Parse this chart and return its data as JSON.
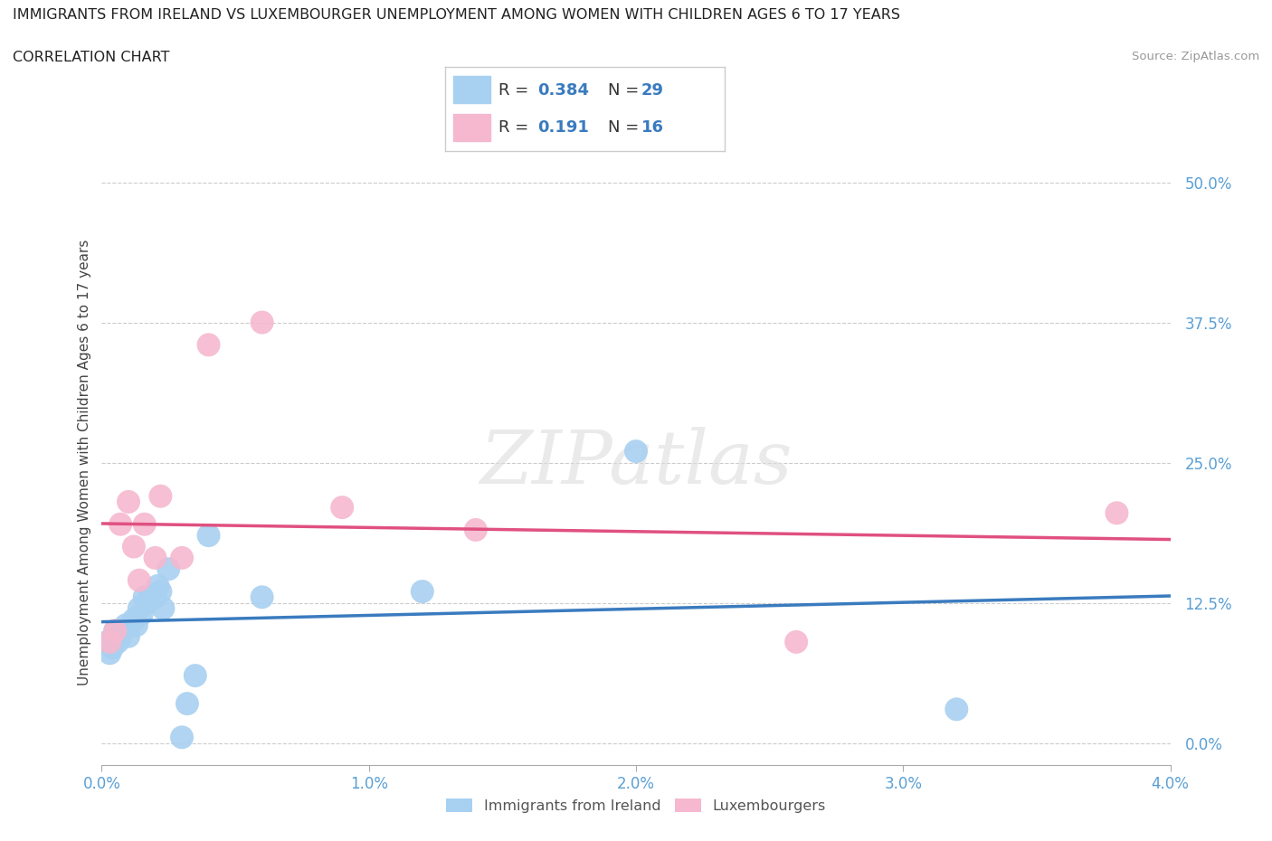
{
  "title": "IMMIGRANTS FROM IRELAND VS LUXEMBOURGER UNEMPLOYMENT AMONG WOMEN WITH CHILDREN AGES 6 TO 17 YEARS",
  "subtitle": "CORRELATION CHART",
  "source": "Source: ZipAtlas.com",
  "ylabel": "Unemployment Among Women with Children Ages 6 to 17 years",
  "legend_label_1": "Immigrants from Ireland",
  "legend_label_2": "Luxembourgers",
  "R1": 0.384,
  "N1": 29,
  "R2": 0.191,
  "N2": 16,
  "xlim": [
    0.0,
    0.04
  ],
  "ylim": [
    -0.02,
    0.52
  ],
  "yticks": [
    0.0,
    0.125,
    0.25,
    0.375,
    0.5
  ],
  "ytick_labels": [
    "0.0%",
    "12.5%",
    "25.0%",
    "37.5%",
    "50.0%"
  ],
  "xticks": [
    0.0,
    0.01,
    0.02,
    0.03,
    0.04
  ],
  "xtick_labels": [
    "0.0%",
    "1.0%",
    "2.0%",
    "3.0%",
    "4.0%"
  ],
  "color1": "#a8d0f0",
  "color2": "#f5b8cf",
  "line_color1": "#3a7bbf",
  "line_color2": "#e05080",
  "ireland_x": [
    0.0002,
    0.0003,
    0.0004,
    0.0005,
    0.0006,
    0.0007,
    0.0008,
    0.0009,
    0.001,
    0.0012,
    0.0013,
    0.0014,
    0.0015,
    0.0016,
    0.0017,
    0.0018,
    0.002,
    0.0021,
    0.0022,
    0.0023,
    0.0025,
    0.003,
    0.0032,
    0.0035,
    0.004,
    0.006,
    0.012,
    0.02,
    0.032
  ],
  "ireland_y": [
    0.09,
    0.08,
    0.085,
    0.1,
    0.09,
    0.095,
    0.1,
    0.105,
    0.095,
    0.11,
    0.105,
    0.12,
    0.115,
    0.13,
    0.125,
    0.13,
    0.13,
    0.14,
    0.135,
    0.12,
    0.155,
    0.005,
    0.035,
    0.06,
    0.185,
    0.13,
    0.135,
    0.26,
    0.03
  ],
  "luxembourg_x": [
    0.0003,
    0.0005,
    0.0007,
    0.001,
    0.0012,
    0.0014,
    0.0016,
    0.002,
    0.0022,
    0.003,
    0.004,
    0.006,
    0.009,
    0.014,
    0.026,
    0.038
  ],
  "luxembourg_y": [
    0.09,
    0.1,
    0.195,
    0.215,
    0.175,
    0.145,
    0.195,
    0.165,
    0.22,
    0.165,
    0.355,
    0.375,
    0.21,
    0.19,
    0.09,
    0.205
  ]
}
